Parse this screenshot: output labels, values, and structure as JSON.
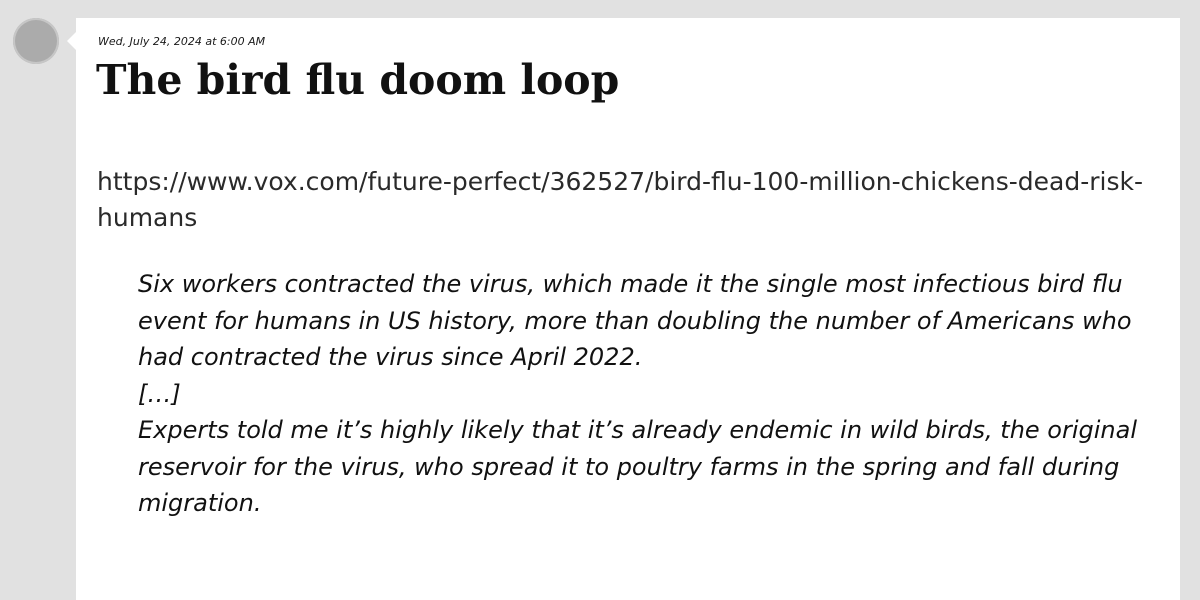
{
  "post": {
    "timestamp": "Wed, July 24, 2024 at 6:00 AM",
    "title": "The bird flu doom loop",
    "link": "https://www.vox.com/future-perfect/362527/bird-flu-100-million-chickens-dead-risk-humans",
    "quote": [
      "Six workers contracted the virus, which made it the single most infectious bird flu event for humans in US history, more than doubling the number of Americans who had contracted the virus since April 2022.",
      "[…]",
      "Experts told me it’s highly likely that it’s already endemic in wild birds, the original reservoir for the virus, who spread it to poultry farms in the spring and fall during migration."
    ]
  },
  "colors": {
    "background": "#e1e1e1",
    "card": "#ffffff",
    "avatar": "#ababab",
    "text": "#111111"
  }
}
